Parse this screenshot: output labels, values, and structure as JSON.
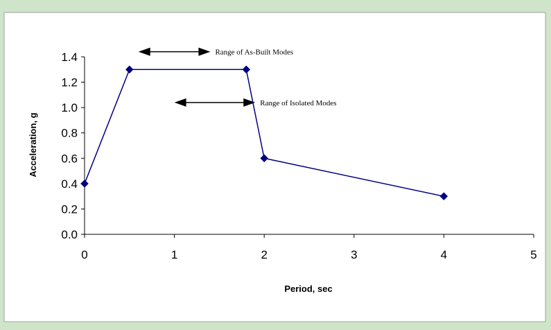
{
  "chart_data": {
    "type": "scatter",
    "title": "",
    "xlabel": "Period, sec",
    "ylabel": "Acceleration, g",
    "xlim": [
      0,
      5
    ],
    "ylim": [
      0,
      1.4
    ],
    "x_ticks": [
      "0",
      "1",
      "2",
      "3",
      "4",
      "5"
    ],
    "y_ticks": [
      "0.0",
      "0.2",
      "0.4",
      "0.6",
      "0.8",
      "1.0",
      "1.2",
      "1.4"
    ],
    "grid": false,
    "series": [
      {
        "x": [
          0,
          0.5,
          1.8,
          2.0,
          4.0
        ],
        "y": [
          0.4,
          1.3,
          1.3,
          0.6,
          0.3
        ],
        "color": "#000080",
        "marker": "diamond"
      }
    ],
    "annotations": [
      {
        "text": "Range of As-Built Modes",
        "x_start": 0.6,
        "x_end": 1.4,
        "y": 1.44
      },
      {
        "text": "Range of Isolated Modes",
        "x_start": 1.0,
        "x_end": 1.9,
        "y": 1.04
      }
    ]
  },
  "colors": {
    "frame_background": "#cfe5c9",
    "plot_background": "#ffffff",
    "series_line": "#000080"
  }
}
